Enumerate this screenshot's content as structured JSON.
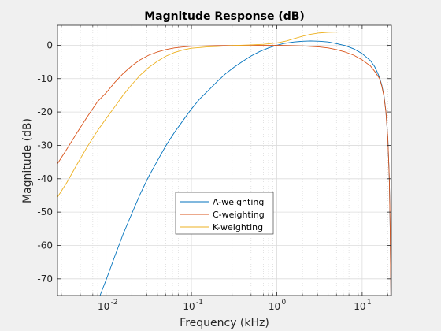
{
  "chart_data": {
    "type": "line",
    "title": "Magnitude Response (dB)",
    "xlabel": "Frequency (kHz)",
    "ylabel": "Magnitude (dB)",
    "xscale": "log",
    "xlim": [
      0.0027,
      22
    ],
    "ylim": [
      -75,
      6
    ],
    "grid": true,
    "minor_grid": true,
    "legend_position": "center-lower",
    "yticks": [
      0,
      -10,
      -20,
      -30,
      -40,
      -50,
      -60,
      -70
    ],
    "ytick_labels": [
      "0",
      "-10",
      "-20",
      "-30",
      "-40",
      "-50",
      "-60",
      "-70"
    ],
    "xticks": [
      {
        "value": 0.01,
        "base": "10",
        "exp": "-2"
      },
      {
        "value": 0.1,
        "base": "10",
        "exp": "-1"
      },
      {
        "value": 1,
        "base": "10",
        "exp": "0"
      },
      {
        "value": 10,
        "base": "10",
        "exp": "1"
      }
    ],
    "series": [
      {
        "name": "A-weighting",
        "color": "#0072BD",
        "points": [
          [
            0.0085,
            -75
          ],
          [
            0.01,
            -70.4
          ],
          [
            0.0126,
            -63.4
          ],
          [
            0.0158,
            -56.7
          ],
          [
            0.02,
            -50.5
          ],
          [
            0.025,
            -44.7
          ],
          [
            0.0315,
            -39.4
          ],
          [
            0.04,
            -34.6
          ],
          [
            0.05,
            -30.2
          ],
          [
            0.063,
            -26.2
          ],
          [
            0.08,
            -22.5
          ],
          [
            0.1,
            -19.1
          ],
          [
            0.125,
            -16.1
          ],
          [
            0.16,
            -13.4
          ],
          [
            0.2,
            -10.9
          ],
          [
            0.25,
            -8.6
          ],
          [
            0.315,
            -6.6
          ],
          [
            0.4,
            -4.8
          ],
          [
            0.5,
            -3.2
          ],
          [
            0.63,
            -1.9
          ],
          [
            0.8,
            -0.8
          ],
          [
            1.0,
            0
          ],
          [
            1.25,
            0.6
          ],
          [
            1.6,
            1.0
          ],
          [
            2.0,
            1.2
          ],
          [
            2.5,
            1.3
          ],
          [
            3.15,
            1.2
          ],
          [
            4.0,
            1.0
          ],
          [
            5.0,
            0.5
          ],
          [
            6.3,
            -0.1
          ],
          [
            8.0,
            -1.1
          ],
          [
            10.0,
            -2.5
          ],
          [
            11.0,
            -3.4
          ],
          [
            12.5,
            -4.6
          ],
          [
            14.0,
            -6.4
          ],
          [
            15.0,
            -8.0
          ],
          [
            16.0,
            -9.7
          ],
          [
            17.0,
            -12.0
          ],
          [
            18.0,
            -15.0
          ],
          [
            19.0,
            -20.0
          ],
          [
            20.0,
            -28.0
          ],
          [
            20.8,
            -40.0
          ],
          [
            21.3,
            -55.0
          ],
          [
            21.7,
            -75.0
          ]
        ]
      },
      {
        "name": "C-weighting",
        "color": "#D95319",
        "points": [
          [
            0.0027,
            -35.5
          ],
          [
            0.0035,
            -31.0
          ],
          [
            0.0045,
            -26.5
          ],
          [
            0.006,
            -21.5
          ],
          [
            0.008,
            -16.8
          ],
          [
            0.01,
            -14.3
          ],
          [
            0.0126,
            -11.2
          ],
          [
            0.0158,
            -8.5
          ],
          [
            0.02,
            -6.2
          ],
          [
            0.025,
            -4.4
          ],
          [
            0.0315,
            -3.0
          ],
          [
            0.04,
            -2.0
          ],
          [
            0.05,
            -1.3
          ],
          [
            0.063,
            -0.8
          ],
          [
            0.08,
            -0.5
          ],
          [
            0.1,
            -0.3
          ],
          [
            0.2,
            -0.1
          ],
          [
            0.5,
            0
          ],
          [
            1.0,
            0
          ],
          [
            2.0,
            -0.2
          ],
          [
            3.15,
            -0.5
          ],
          [
            4.0,
            -0.8
          ],
          [
            5.0,
            -1.3
          ],
          [
            6.3,
            -2.0
          ],
          [
            8.0,
            -3.0
          ],
          [
            10.0,
            -4.4
          ],
          [
            12.5,
            -6.2
          ],
          [
            14.0,
            -7.8
          ],
          [
            16.0,
            -10.0
          ],
          [
            17.0,
            -12.3
          ],
          [
            18.0,
            -15.3
          ],
          [
            19.0,
            -20.0
          ],
          [
            20.0,
            -28.0
          ],
          [
            20.8,
            -40.0
          ],
          [
            21.3,
            -55.0
          ],
          [
            21.7,
            -75.0
          ]
        ]
      },
      {
        "name": "K-weighting",
        "color": "#EDB120",
        "points": [
          [
            0.0027,
            -45.5
          ],
          [
            0.0035,
            -41.0
          ],
          [
            0.0045,
            -36.0
          ],
          [
            0.006,
            -30.5
          ],
          [
            0.008,
            -25.5
          ],
          [
            0.01,
            -22.0
          ],
          [
            0.0126,
            -18.5
          ],
          [
            0.0158,
            -15.0
          ],
          [
            0.02,
            -11.8
          ],
          [
            0.025,
            -9.0
          ],
          [
            0.0315,
            -6.7
          ],
          [
            0.04,
            -4.8
          ],
          [
            0.05,
            -3.3
          ],
          [
            0.063,
            -2.2
          ],
          [
            0.08,
            -1.4
          ],
          [
            0.1,
            -0.9
          ],
          [
            0.15,
            -0.5
          ],
          [
            0.2,
            -0.4
          ],
          [
            0.3,
            -0.1
          ],
          [
            0.5,
            0.1
          ],
          [
            0.7,
            0.3
          ],
          [
            1.0,
            0.7
          ],
          [
            1.3,
            1.3
          ],
          [
            1.6,
            2.0
          ],
          [
            2.0,
            2.7
          ],
          [
            2.5,
            3.3
          ],
          [
            3.15,
            3.7
          ],
          [
            4.0,
            3.9
          ],
          [
            6.0,
            4.0
          ],
          [
            10.0,
            4.0
          ],
          [
            22.0,
            4.0
          ]
        ]
      }
    ]
  }
}
